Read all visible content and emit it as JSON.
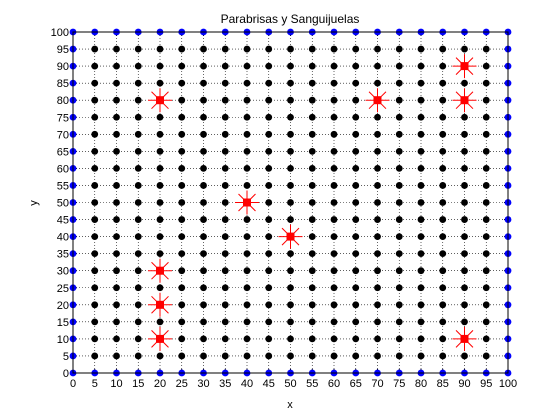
{
  "chart_data": {
    "type": "scatter",
    "title": "Parabrisas y Sanguijuelas",
    "xlabel": "x",
    "ylabel": "y",
    "xlim": [
      0,
      100
    ],
    "ylim": [
      0,
      100
    ],
    "xticks": [
      0,
      5,
      10,
      15,
      20,
      25,
      30,
      35,
      40,
      45,
      50,
      55,
      60,
      65,
      70,
      75,
      80,
      85,
      90,
      95,
      100
    ],
    "yticks": [
      0,
      5,
      10,
      15,
      20,
      25,
      30,
      35,
      40,
      45,
      50,
      55,
      60,
      65,
      70,
      75,
      80,
      85,
      90,
      95,
      100
    ],
    "grid": true,
    "grid_step": 5,
    "series": [
      {
        "role": "interior",
        "color": "#000000",
        "marker": "filled-circle",
        "grid_from": 5,
        "grid_to": 95,
        "grid_step": 5
      },
      {
        "role": "boundary",
        "color": "#0000ff",
        "marker": "filled-circle",
        "grid_from": 0,
        "grid_to": 100,
        "grid_step": 5
      },
      {
        "role": "highlighted",
        "color": "#ff0000",
        "marker": "square-star",
        "points": [
          [
            20,
            80
          ],
          [
            20,
            30
          ],
          [
            20,
            20
          ],
          [
            20,
            10
          ],
          [
            40,
            50
          ],
          [
            50,
            40
          ],
          [
            70,
            80
          ],
          [
            90,
            90
          ],
          [
            90,
            80
          ],
          [
            90,
            10
          ]
        ]
      }
    ]
  }
}
